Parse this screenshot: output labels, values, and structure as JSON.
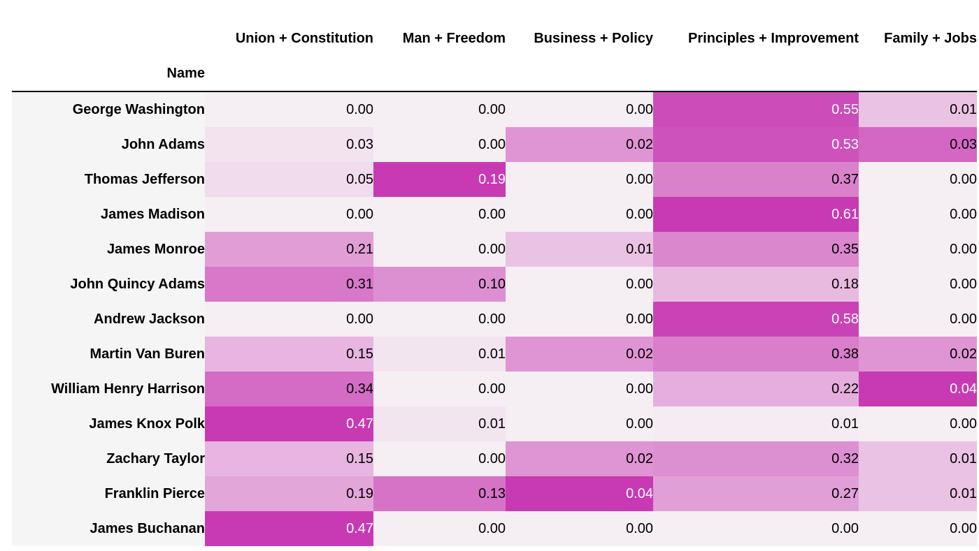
{
  "chart_data": {
    "type": "heatmap",
    "index_name": "Name",
    "columns": [
      "Union + Constitution",
      "Man + Freedom",
      "Business + Policy",
      "Principles + Improvement",
      "Family + Jobs"
    ],
    "rows": [
      {
        "name": "George Washington",
        "values": [
          0.0,
          0.0,
          0.0,
          0.55,
          0.01
        ]
      },
      {
        "name": "John Adams",
        "values": [
          0.03,
          0.0,
          0.02,
          0.53,
          0.03
        ]
      },
      {
        "name": "Thomas Jefferson",
        "values": [
          0.05,
          0.19,
          0.0,
          0.37,
          0.0
        ]
      },
      {
        "name": "James Madison",
        "values": [
          0.0,
          0.0,
          0.0,
          0.61,
          0.0
        ]
      },
      {
        "name": "James Monroe",
        "values": [
          0.21,
          0.0,
          0.01,
          0.35,
          0.0
        ]
      },
      {
        "name": "John Quincy Adams",
        "values": [
          0.31,
          0.1,
          0.0,
          0.18,
          0.0
        ]
      },
      {
        "name": "Andrew Jackson",
        "values": [
          0.0,
          0.0,
          0.0,
          0.58,
          0.0
        ]
      },
      {
        "name": "Martin Van Buren",
        "values": [
          0.15,
          0.01,
          0.02,
          0.38,
          0.02
        ]
      },
      {
        "name": "William Henry Harrison",
        "values": [
          0.34,
          0.0,
          0.0,
          0.22,
          0.04
        ]
      },
      {
        "name": "James Knox Polk",
        "values": [
          0.47,
          0.01,
          0.0,
          0.01,
          0.0
        ]
      },
      {
        "name": "Zachary Taylor",
        "values": [
          0.15,
          0.0,
          0.02,
          0.32,
          0.01
        ]
      },
      {
        "name": "Franklin Pierce",
        "values": [
          0.19,
          0.13,
          0.04,
          0.27,
          0.01
        ]
      },
      {
        "name": "James Buchanan",
        "values": [
          0.47,
          0.0,
          0.0,
          0.0,
          0.0
        ]
      }
    ],
    "value_format": "0.00",
    "colormap": {
      "low": "#f5eff3",
      "high": "#c83ab3"
    }
  }
}
